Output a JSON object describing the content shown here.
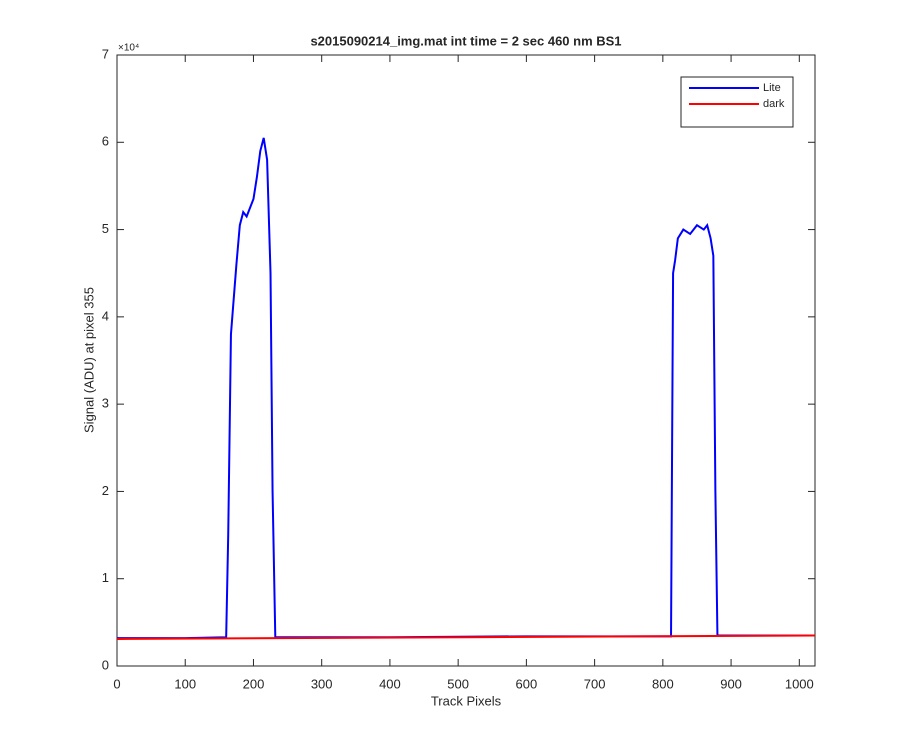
{
  "chart_data": {
    "type": "line",
    "title": "s2015090214_img.mat int time = 2 sec  460 nm BS1",
    "x_label": "Track Pixels",
    "y_label": "Signal (ADU) at pixel 355",
    "y_exponent_label": "×10⁴",
    "series": [
      {
        "name": "Lite",
        "color": "#0000ff",
        "x": [
          0,
          100,
          160,
          163,
          167,
          170,
          175,
          180,
          185,
          190,
          195,
          200,
          205,
          210,
          215,
          220,
          225,
          228,
          232,
          400,
          600,
          812,
          815,
          818,
          822,
          830,
          840,
          850,
          860,
          865,
          870,
          874,
          877,
          880,
          1023
        ],
        "values": [
          0.32,
          0.32,
          0.33,
          1.5,
          3.8,
          4.1,
          4.6,
          5.05,
          5.2,
          5.15,
          5.25,
          5.35,
          5.6,
          5.9,
          6.05,
          5.8,
          4.5,
          2,
          0.33,
          0.33,
          0.34,
          0.34,
          4.5,
          4.65,
          4.9,
          5.0,
          4.95,
          5.05,
          5.0,
          5.05,
          4.9,
          4.7,
          2,
          0.35,
          0.35
        ]
      },
      {
        "name": "dark",
        "color": "#ff0000",
        "x": [
          0,
          512,
          1023
        ],
        "values": [
          0.31,
          0.33,
          0.35
        ]
      }
    ],
    "xlim": [
      0,
      1023
    ],
    "xticks": [
      0,
      100,
      200,
      300,
      400,
      500,
      600,
      700,
      800,
      900,
      1000
    ],
    "ylim": [
      0,
      7
    ],
    "yticks": [
      0,
      1,
      2,
      3,
      4,
      5,
      6,
      7
    ],
    "legend": "upper right",
    "grid": false
  }
}
